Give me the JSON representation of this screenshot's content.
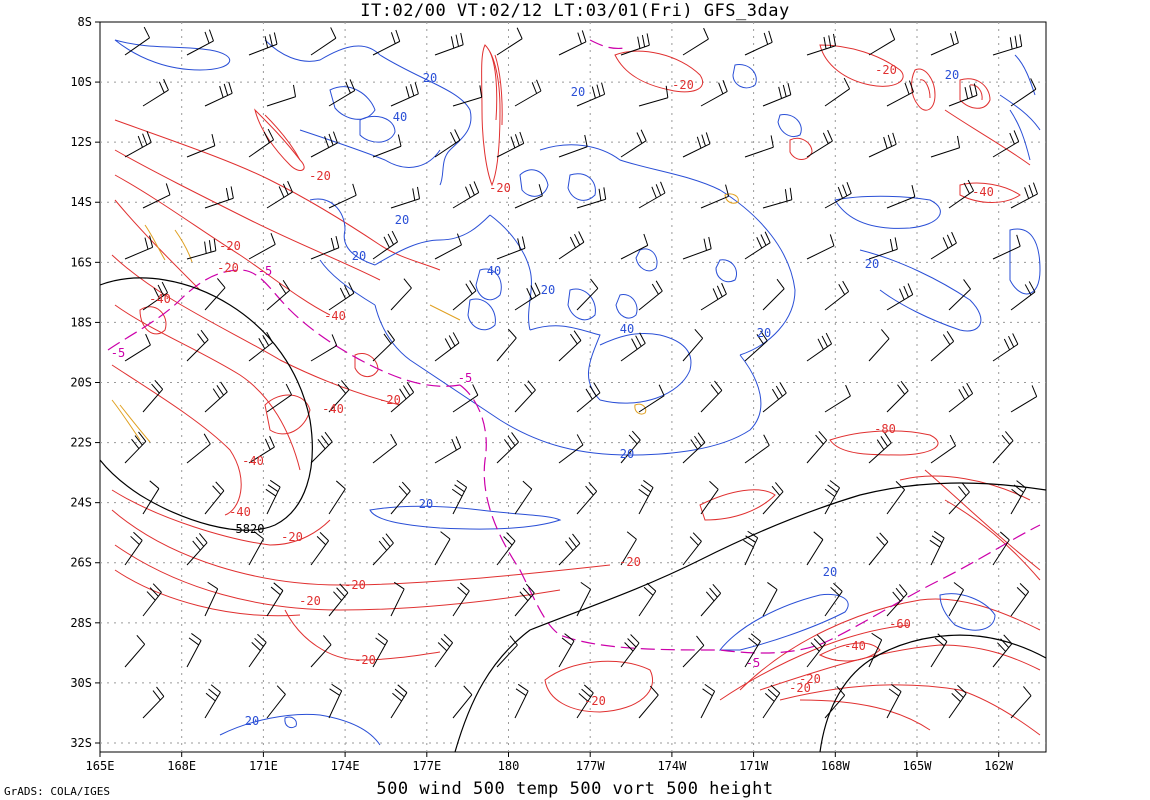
{
  "title": "IT:02/00 VT:02/12 LT:03/01(Fri) GFS_3day",
  "subtitle": "500 wind 500 temp 500 vort 500 height",
  "credit": "GrADS: COLA/IGES",
  "lat_labels": [
    "8S",
    "10S",
    "12S",
    "14S",
    "16S",
    "18S",
    "20S",
    "22S",
    "24S",
    "26S",
    "28S",
    "30S",
    "32S"
  ],
  "lon_labels": [
    "165E",
    "168E",
    "171E",
    "174E",
    "177E",
    "180",
    "177W",
    "174W",
    "171W",
    "168W",
    "165W",
    "162W"
  ],
  "colors": {
    "vort_pos": "#e03030",
    "vort_neg": "#2a4fd6",
    "temp": "#cc00aa",
    "height": "#000000",
    "orange": "#e0a020"
  },
  "contour_labels": {
    "red": [
      "-20",
      "-20",
      "-20",
      "-40",
      "-40",
      "-40",
      "-40",
      "-40",
      "-20",
      "-20",
      "-20",
      "-20",
      "-20",
      "-20",
      "-20",
      "-20",
      "-20",
      "-40",
      "-80",
      "-60",
      "-40",
      "-20",
      "-20",
      "-20"
    ],
    "blue": [
      "20",
      "40",
      "20",
      "20",
      "20",
      "40",
      "20",
      "40",
      "20",
      "20",
      "20",
      "20",
      "20",
      "20",
      "20"
    ],
    "magenta": [
      "-5",
      "-5",
      "-5",
      "-5"
    ],
    "black": [
      "5820"
    ]
  }
}
